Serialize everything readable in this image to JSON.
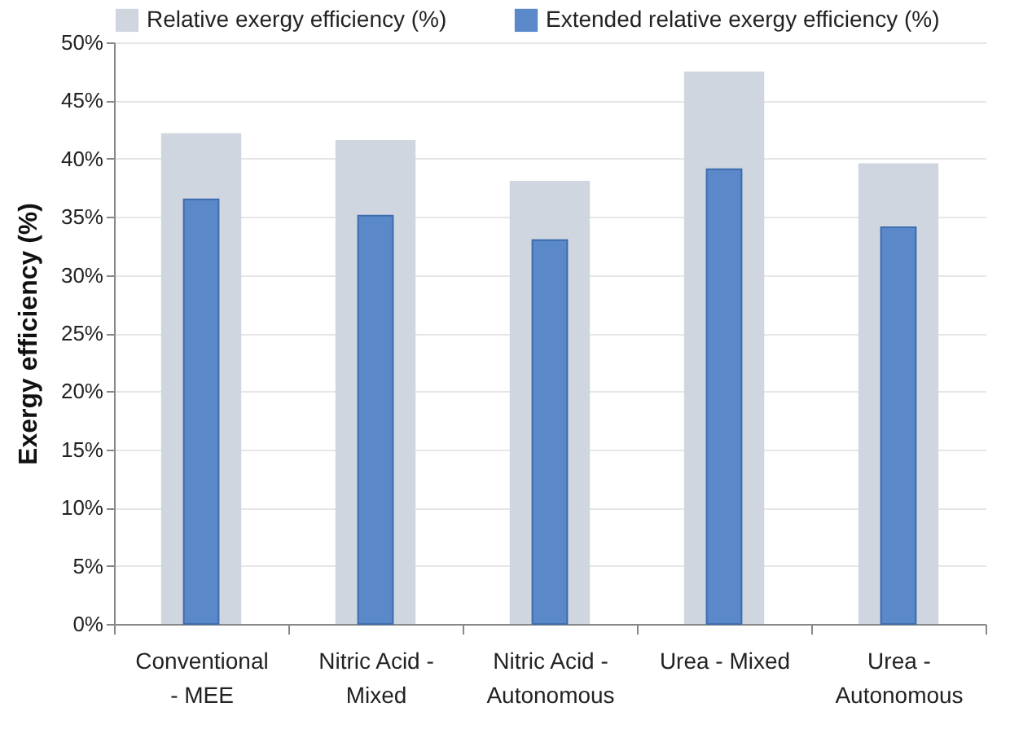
{
  "chart_data": {
    "type": "bar",
    "ylabel": "Exergy efficiency (%)",
    "categories": [
      "Conventional - MEE",
      "Nitric Acid - Mixed",
      "Nitric Acid - Autonomous",
      "Urea - Mixed",
      "Urea - Autonomous"
    ],
    "series": [
      {
        "name": "Relative exergy efficiency (%)",
        "color": "#d0d6df",
        "values": [
          42.2,
          41.6,
          38.1,
          47.5,
          39.6
        ]
      },
      {
        "name": "Extended relative exergy efficiency (%)",
        "color": "#5a88c8",
        "values": [
          36.5,
          35.1,
          33.0,
          39.1,
          34.1
        ]
      }
    ],
    "ylim": [
      0,
      50
    ],
    "yticks": [
      {
        "value": 0,
        "label": "0%"
      },
      {
        "value": 5,
        "label": "5%"
      },
      {
        "value": 10,
        "label": "10%"
      },
      {
        "value": 15,
        "label": "15%"
      },
      {
        "value": 20,
        "label": "20%"
      },
      {
        "value": 25,
        "label": "25%"
      },
      {
        "value": 30,
        "label": "30%"
      },
      {
        "value": 35,
        "label": "35%"
      },
      {
        "value": 40,
        "label": "40%"
      },
      {
        "value": 45,
        "label": "45%"
      },
      {
        "value": 50,
        "label": "50%"
      }
    ],
    "grid": "y",
    "legend": "top"
  }
}
